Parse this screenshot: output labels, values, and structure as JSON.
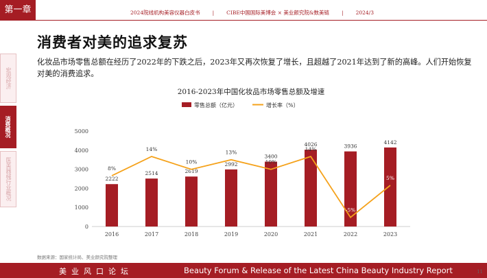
{
  "header": {
    "chapter": "第一章",
    "meta": [
      "2024院线机构美容仪器白皮书",
      "|",
      "CIBE中国国际美博会 × 美业颜究院&数美链",
      "|",
      "2024/3"
    ]
  },
  "page_title": "消费者对美的追求复苏",
  "body_text": "化妆品市场零售总额在经历了2022年的下跌之后，2023年又再次恢复了增长，且超越了2021年达到了新的高峰。人们开始恢复对美的消费追求。",
  "side_nav": [
    {
      "label": "宏观经济",
      "active": false
    },
    {
      "label": "消费概况",
      "active": true
    },
    {
      "label": "医美器械行业概况",
      "active": false
    }
  ],
  "chart_data": {
    "type": "bar",
    "title": "2016-2023年中国化妆品市场零售总额及增速",
    "categories": [
      "2016",
      "2017",
      "2018",
      "2019",
      "2020",
      "2021",
      "2022",
      "2023"
    ],
    "series": [
      {
        "name": "零售总额（亿元）",
        "type": "bar",
        "values": [
          2222,
          2514,
          2619,
          2992,
          3400,
          4026,
          3936,
          4142
        ],
        "color": "#a51d24"
      },
      {
        "name": "增长率（%）",
        "type": "line",
        "values": [
          8,
          14,
          10,
          13,
          10,
          14,
          -5,
          5
        ],
        "labels": [
          "8%",
          "14%",
          "10%",
          "13%",
          "10%",
          "14%",
          "-5%",
          "5%"
        ],
        "color": "#f5a21b"
      }
    ],
    "y_ticks": [
      "0",
      "1000",
      "2000",
      "3000",
      "4000",
      "5000"
    ],
    "ylim": [
      0,
      5000
    ],
    "legend_position": "top",
    "grid": false
  },
  "source_note": "数据来源：国家统计局、美业颜究院整理",
  "footer": {
    "left": "美业风口论坛",
    "right": "Beauty Forum & Release of the Latest China Beauty Industry Report"
  },
  "page_number": "11"
}
